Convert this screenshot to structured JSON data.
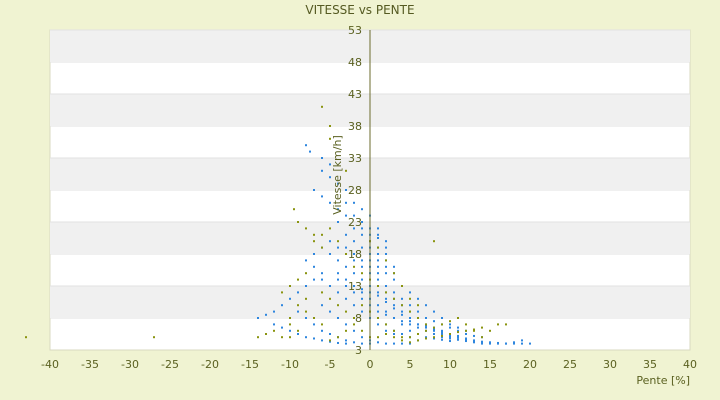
{
  "chart_data": {
    "type": "scatter",
    "title": "VITESSE vs PENTE",
    "xlabel": "Pente [%]",
    "ylabel": "Vitesse [km/h]",
    "xlim": [
      -40,
      40
    ],
    "ylim": [
      3,
      53
    ],
    "xticks": [
      -40,
      -35,
      -30,
      -25,
      -20,
      -15,
      -10,
      -5,
      0,
      5,
      10,
      15,
      20,
      25,
      30,
      35,
      40
    ],
    "yticks": [
      3,
      8,
      13,
      18,
      23,
      28,
      33,
      38,
      43,
      48,
      53
    ],
    "grid": "horizontal bands",
    "legend": "none",
    "colors": {
      "series_blue": "#2e86de",
      "series_olive": "#8a9410",
      "band": "#f0f0f0",
      "plot_bg": "#ffffff",
      "page_bg": "#f0f3d2",
      "axis": "#6b6b2e"
    },
    "series": [
      {
        "color": "#2e86de",
        "points": [
          [
            -8,
            35
          ],
          [
            -7.5,
            34
          ],
          [
            -6,
            33
          ],
          [
            -5,
            32
          ],
          [
            -3,
            26
          ],
          [
            -2,
            24
          ],
          [
            -1,
            22
          ],
          [
            0,
            20
          ],
          [
            1,
            19
          ],
          [
            2,
            18
          ],
          [
            -4,
            23
          ],
          [
            -3,
            21
          ],
          [
            -2,
            20
          ],
          [
            -1,
            19
          ],
          [
            0,
            18
          ],
          [
            1,
            17
          ],
          [
            2,
            16
          ],
          [
            3,
            15
          ],
          [
            -5,
            18
          ],
          [
            -4,
            17
          ],
          [
            -3,
            16
          ],
          [
            -2,
            15
          ],
          [
            -1,
            14
          ],
          [
            0,
            13
          ],
          [
            1,
            12
          ],
          [
            2,
            11
          ],
          [
            3,
            10
          ],
          [
            4,
            9
          ],
          [
            5,
            8
          ],
          [
            6,
            7
          ],
          [
            7,
            6.5
          ],
          [
            8,
            6
          ],
          [
            9,
            5.5
          ],
          [
            10,
            5
          ],
          [
            11,
            5
          ],
          [
            12,
            4.8
          ],
          [
            13,
            4.5
          ],
          [
            14,
            4.3
          ],
          [
            15,
            4.2
          ],
          [
            16,
            4.1
          ],
          [
            17,
            4
          ],
          [
            18,
            4
          ],
          [
            19,
            4
          ],
          [
            -6,
            15
          ],
          [
            -7,
            14
          ],
          [
            -8,
            13
          ],
          [
            -9,
            12
          ],
          [
            -10,
            11
          ],
          [
            -11,
            10
          ],
          [
            -12,
            9
          ],
          [
            -13,
            8.5
          ],
          [
            -14,
            8
          ],
          [
            -6,
            10
          ],
          [
            -5,
            9
          ],
          [
            -4,
            8
          ],
          [
            -3,
            7
          ],
          [
            -2,
            6
          ],
          [
            -1,
            5
          ],
          [
            0,
            4.5
          ],
          [
            1,
            4.2
          ],
          [
            2,
            4
          ],
          [
            3,
            4
          ],
          [
            4,
            4
          ],
          [
            5,
            4
          ],
          [
            -1,
            12
          ],
          [
            0,
            11
          ],
          [
            1,
            10
          ],
          [
            2,
            9
          ],
          [
            3,
            8
          ],
          [
            4,
            7
          ],
          [
            5,
            6
          ],
          [
            6,
            5.5
          ],
          [
            7,
            5
          ],
          [
            8,
            4.8
          ],
          [
            9,
            4.6
          ],
          [
            10,
            4.4
          ],
          [
            -2,
            17
          ],
          [
            -1,
            16
          ],
          [
            0,
            15
          ],
          [
            1,
            14
          ],
          [
            2,
            13
          ],
          [
            3,
            12
          ],
          [
            4,
            11
          ],
          [
            5,
            10
          ],
          [
            6,
            9
          ],
          [
            7,
            8
          ],
          [
            8,
            7.5
          ],
          [
            9,
            7
          ],
          [
            10,
            6.5
          ],
          [
            11,
            6
          ],
          [
            12,
            5.5
          ],
          [
            13,
            5.2
          ],
          [
            14,
            5
          ],
          [
            0,
            9
          ],
          [
            1,
            8
          ],
          [
            2,
            7
          ],
          [
            3,
            6
          ],
          [
            4,
            5.5
          ],
          [
            5,
            5
          ],
          [
            6,
            4.5
          ],
          [
            -4,
            12
          ],
          [
            -3,
            11
          ],
          [
            -2,
            10
          ],
          [
            -1,
            9
          ],
          [
            0,
            8
          ],
          [
            1,
            7
          ],
          [
            2,
            6
          ],
          [
            3,
            5.5
          ],
          [
            -7,
            16
          ],
          [
            -6,
            14
          ],
          [
            -5,
            13
          ],
          [
            -4,
            14
          ],
          [
            -3,
            13
          ],
          [
            -2,
            12
          ],
          [
            -1,
            11
          ],
          [
            0,
            10
          ],
          [
            1,
            9
          ],
          [
            2,
            8.5
          ],
          [
            3,
            8
          ],
          [
            4,
            7.5
          ],
          [
            5,
            7
          ],
          [
            6,
            6.5
          ],
          [
            7,
            6
          ],
          [
            8,
            5.5
          ],
          [
            9,
            5
          ],
          [
            10,
            4.8
          ],
          [
            11,
            4.6
          ],
          [
            12,
            4.4
          ],
          [
            13,
            4.2
          ],
          [
            14,
            4
          ],
          [
            15,
            4
          ],
          [
            16,
            4
          ],
          [
            17,
            4
          ],
          [
            18,
            4.2
          ],
          [
            19,
            4.5
          ],
          [
            20,
            4
          ],
          [
            -9,
            9
          ],
          [
            -8,
            8
          ],
          [
            -7,
            7
          ],
          [
            -6,
            6
          ],
          [
            -5,
            5.5
          ],
          [
            -4,
            5
          ],
          [
            -3,
            4.5
          ],
          [
            -2,
            4.2
          ],
          [
            -1,
            4
          ],
          [
            0,
            4
          ],
          [
            -12,
            7
          ],
          [
            -11,
            6.5
          ],
          [
            -10,
            6
          ],
          [
            -9,
            5.5
          ],
          [
            -8,
            5
          ],
          [
            -7,
            4.8
          ],
          [
            -6,
            4.5
          ],
          [
            -5,
            4.3
          ],
          [
            -4,
            4.1
          ],
          [
            -3,
            4
          ],
          [
            0,
            22
          ],
          [
            1,
            21
          ],
          [
            2,
            20
          ],
          [
            -1,
            21
          ],
          [
            0,
            19
          ],
          [
            1,
            18
          ],
          [
            2,
            17
          ],
          [
            3,
            16
          ],
          [
            0,
            17
          ],
          [
            1,
            16
          ],
          [
            2,
            15
          ],
          [
            3,
            14
          ],
          [
            4,
            13
          ],
          [
            5,
            12
          ],
          [
            6,
            11
          ],
          [
            7,
            10
          ],
          [
            8,
            9
          ],
          [
            9,
            8
          ],
          [
            10,
            7
          ],
          [
            11,
            6.5
          ],
          [
            12,
            6
          ],
          [
            1,
            13
          ],
          [
            2,
            12
          ],
          [
            3,
            11
          ],
          [
            4,
            10
          ],
          [
            5,
            9
          ],
          [
            6,
            8
          ],
          [
            7,
            7
          ],
          [
            8,
            6.5
          ],
          [
            9,
            6
          ],
          [
            10,
            5.5
          ],
          [
            11,
            5.2
          ],
          [
            -3,
            19
          ],
          [
            -2,
            18
          ],
          [
            -1,
            17
          ],
          [
            0,
            16
          ],
          [
            1,
            15
          ],
          [
            -4,
            19
          ],
          [
            -5,
            20
          ],
          [
            -6,
            19
          ],
          [
            -7,
            18
          ],
          [
            -8,
            17
          ],
          [
            -4,
            15
          ],
          [
            -3,
            14
          ],
          [
            -2,
            13
          ],
          [
            -1,
            12.5
          ],
          [
            0,
            12
          ],
          [
            1,
            11.5
          ],
          [
            2,
            10.5
          ],
          [
            3,
            9.5
          ],
          [
            4,
            8.5
          ],
          [
            5,
            7.5
          ],
          [
            6,
            7
          ],
          [
            7,
            6.8
          ],
          [
            8,
            6.2
          ],
          [
            9,
            5.8
          ],
          [
            10,
            5.2
          ],
          [
            11,
            4.9
          ],
          [
            12,
            4.6
          ],
          [
            13,
            4.4
          ],
          [
            14,
            4.2
          ],
          [
            15,
            4.1
          ],
          [
            -2,
            22
          ],
          [
            -1,
            23
          ],
          [
            0,
            21
          ],
          [
            1,
            20.5
          ],
          [
            2,
            19
          ],
          [
            -1,
            25
          ],
          [
            0,
            24
          ],
          [
            1,
            22
          ],
          [
            -2,
            26
          ],
          [
            -3,
            28
          ],
          [
            -4,
            29
          ],
          [
            -5,
            30
          ],
          [
            -6,
            31
          ],
          [
            -3,
            24
          ],
          [
            -4,
            25
          ],
          [
            -5,
            26
          ],
          [
            -6,
            27
          ],
          [
            -7,
            28
          ]
        ]
      },
      {
        "color": "#8a9410",
        "points": [
          [
            -43,
            5
          ],
          [
            -27,
            5
          ],
          [
            -9.5,
            25
          ],
          [
            -9,
            23
          ],
          [
            -8,
            22
          ],
          [
            -7,
            21
          ],
          [
            -6,
            19
          ],
          [
            -5,
            38
          ],
          [
            -6,
            41
          ],
          [
            -5,
            36
          ],
          [
            -3,
            31
          ],
          [
            -8,
            9
          ],
          [
            -7,
            8
          ],
          [
            -6,
            7
          ],
          [
            -9,
            10
          ],
          [
            -10,
            8
          ],
          [
            -11,
            5
          ],
          [
            -12,
            6
          ],
          [
            -13,
            5.5
          ],
          [
            -14,
            5
          ],
          [
            -10,
            7
          ],
          [
            -5,
            4.5
          ],
          [
            -4,
            5
          ],
          [
            -3,
            6
          ],
          [
            -2,
            8
          ],
          [
            -1,
            10
          ],
          [
            0,
            9
          ],
          [
            1,
            8
          ],
          [
            2,
            7
          ],
          [
            3,
            6
          ],
          [
            4,
            5
          ],
          [
            5,
            5
          ],
          [
            6,
            5.5
          ],
          [
            7,
            6
          ],
          [
            8,
            6.5
          ],
          [
            9,
            7
          ],
          [
            10,
            7.5
          ],
          [
            11,
            8
          ],
          [
            12,
            7
          ],
          [
            13,
            6
          ],
          [
            14,
            5
          ],
          [
            15,
            6
          ],
          [
            16,
            7
          ],
          [
            17,
            7
          ],
          [
            8,
            20
          ],
          [
            -2,
            16
          ],
          [
            -1,
            15
          ],
          [
            0,
            14
          ],
          [
            1,
            13
          ],
          [
            2,
            12
          ],
          [
            3,
            11
          ],
          [
            4,
            10
          ],
          [
            5,
            9
          ],
          [
            6,
            8
          ],
          [
            7,
            7
          ],
          [
            -6,
            12
          ],
          [
            -5,
            11
          ],
          [
            -4,
            10
          ],
          [
            -3,
            9
          ],
          [
            -2,
            7
          ],
          [
            -1,
            6
          ],
          [
            0,
            5
          ],
          [
            1,
            5
          ],
          [
            2,
            5.5
          ],
          [
            3,
            5
          ],
          [
            4,
            4.5
          ],
          [
            5,
            4.2
          ],
          [
            6,
            4.5
          ],
          [
            7,
            4.8
          ],
          [
            8,
            5
          ],
          [
            9,
            5.2
          ],
          [
            10,
            5.5
          ],
          [
            11,
            5.8
          ],
          [
            12,
            6
          ],
          [
            13,
            6.2
          ],
          [
            14,
            6.5
          ],
          [
            -7,
            20
          ],
          [
            -6,
            21
          ],
          [
            -5,
            22
          ],
          [
            -4,
            20
          ],
          [
            -3,
            18
          ],
          [
            -8,
            15
          ],
          [
            -9,
            14
          ],
          [
            -10,
            13
          ],
          [
            -11,
            12
          ],
          [
            -8,
            11
          ],
          [
            -9,
            6
          ],
          [
            -10,
            5
          ],
          [
            0,
            20
          ],
          [
            1,
            19
          ],
          [
            2,
            17
          ],
          [
            3,
            15
          ],
          [
            4,
            13
          ],
          [
            5,
            11
          ],
          [
            6,
            10
          ]
        ]
      }
    ]
  }
}
